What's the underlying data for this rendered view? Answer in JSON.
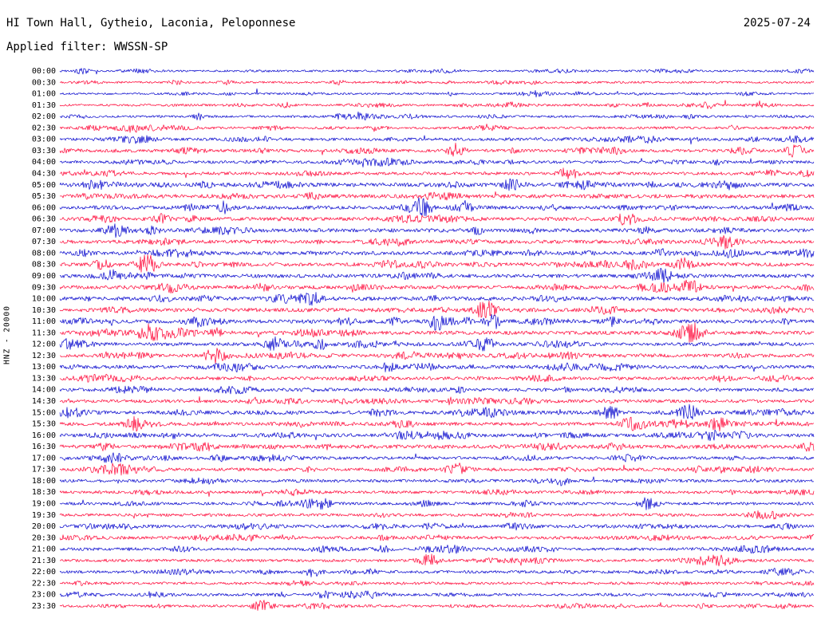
{
  "header": {
    "title": "HI Town Hall, Gytheio, Laconia, Peloponnese",
    "date": "2025-07-24",
    "filter": "Applied filter: WWSSN-SP"
  },
  "axis": {
    "left_label": "HNZ - 20000"
  },
  "chart_data": {
    "type": "helicorder",
    "channel": "HNZ",
    "scale": 20000,
    "row_interval_minutes": 30,
    "first_row_time": "00:00",
    "last_row_time": "23:30",
    "colors": {
      "blue": "#0000cc",
      "red": "#ff0033",
      "background": "#ffffff",
      "text": "#000000"
    },
    "rows": [
      {
        "t": "00:00",
        "c": "blue",
        "n": 1.2
      },
      {
        "t": "00:30",
        "c": "red",
        "n": 1.3
      },
      {
        "t": "01:00",
        "c": "blue",
        "n": 1.2
      },
      {
        "t": "01:30",
        "c": "red",
        "n": 1.4
      },
      {
        "t": "02:00",
        "c": "blue",
        "n": 1.4
      },
      {
        "t": "02:30",
        "c": "red",
        "n": 1.5
      },
      {
        "t": "03:00",
        "c": "blue",
        "n": 1.8
      },
      {
        "t": "03:30",
        "c": "red",
        "n": 1.9
      },
      {
        "t": "04:00",
        "c": "blue",
        "n": 1.7
      },
      {
        "t": "04:30",
        "c": "red",
        "n": 1.9
      },
      {
        "t": "05:00",
        "c": "blue",
        "n": 2.4
      },
      {
        "t": "05:30",
        "c": "red",
        "n": 2.4
      },
      {
        "t": "06:00",
        "c": "blue",
        "n": 2.2
      },
      {
        "t": "06:30",
        "c": "red",
        "n": 2.2
      },
      {
        "t": "07:00",
        "c": "blue",
        "n": 2.3
      },
      {
        "t": "07:30",
        "c": "red",
        "n": 2.2
      },
      {
        "t": "08:00",
        "c": "blue",
        "n": 2.2
      },
      {
        "t": "08:30",
        "c": "red",
        "n": 2.3
      },
      {
        "t": "09:00",
        "c": "blue",
        "n": 2.3
      },
      {
        "t": "09:30",
        "c": "red",
        "n": 2.2
      },
      {
        "t": "10:00",
        "c": "blue",
        "n": 2.4
      },
      {
        "t": "10:30",
        "c": "red",
        "n": 2.3
      },
      {
        "t": "11:00",
        "c": "blue",
        "n": 2.3
      },
      {
        "t": "11:30",
        "c": "red",
        "n": 2.3
      },
      {
        "t": "12:00",
        "c": "blue",
        "n": 2.2
      },
      {
        "t": "12:30",
        "c": "red",
        "n": 2.2
      },
      {
        "t": "13:00",
        "c": "blue",
        "n": 2.1
      },
      {
        "t": "13:30",
        "c": "red",
        "n": 2.0
      },
      {
        "t": "14:00",
        "c": "blue",
        "n": 2.0
      },
      {
        "t": "14:30",
        "c": "red",
        "n": 2.0
      },
      {
        "t": "15:00",
        "c": "blue",
        "n": 2.2
      },
      {
        "t": "15:30",
        "c": "red",
        "n": 2.2
      },
      {
        "t": "16:00",
        "c": "blue",
        "n": 2.2
      },
      {
        "t": "16:30",
        "c": "red",
        "n": 2.3
      },
      {
        "t": "17:00",
        "c": "blue",
        "n": 1.9
      },
      {
        "t": "17:30",
        "c": "red",
        "n": 1.9
      },
      {
        "t": "18:00",
        "c": "blue",
        "n": 1.8
      },
      {
        "t": "18:30",
        "c": "red",
        "n": 1.8
      },
      {
        "t": "19:00",
        "c": "blue",
        "n": 1.8
      },
      {
        "t": "19:30",
        "c": "red",
        "n": 1.7
      },
      {
        "t": "20:00",
        "c": "blue",
        "n": 1.9
      },
      {
        "t": "20:30",
        "c": "red",
        "n": 1.9
      },
      {
        "t": "21:00",
        "c": "blue",
        "n": 1.8
      },
      {
        "t": "21:30",
        "c": "red",
        "n": 1.8
      },
      {
        "t": "22:00",
        "c": "blue",
        "n": 1.8
      },
      {
        "t": "22:30",
        "c": "red",
        "n": 1.7
      },
      {
        "t": "23:00",
        "c": "blue",
        "n": 1.7
      },
      {
        "t": "23:30",
        "c": "red",
        "n": 1.6
      }
    ],
    "events": [
      {
        "t": "00:00",
        "x": 0.03,
        "a": 3.5,
        "w": 6
      },
      {
        "t": "00:30",
        "x": 0.155,
        "a": 2.5,
        "w": 5
      },
      {
        "t": "00:30",
        "x": 0.37,
        "a": 2.5,
        "w": 6
      },
      {
        "t": "01:00",
        "x": 0.52,
        "a": 2,
        "w": 5
      },
      {
        "t": "01:30",
        "x": 0.3,
        "a": 2.5,
        "w": 6
      },
      {
        "t": "01:30",
        "x": 0.86,
        "a": 3,
        "w": 7
      },
      {
        "t": "02:00",
        "x": 0.185,
        "a": 3.5,
        "w": 5
      },
      {
        "t": "02:30",
        "x": 0.1,
        "a": 2.5,
        "w": 6
      },
      {
        "t": "02:30",
        "x": 0.42,
        "a": 2.5,
        "w": 6
      },
      {
        "t": "03:00",
        "x": 0.27,
        "a": 3,
        "w": 6
      },
      {
        "t": "03:30",
        "x": 0.525,
        "a": 8,
        "w": 7
      },
      {
        "t": "03:30",
        "x": 0.975,
        "a": 7,
        "w": 8
      },
      {
        "t": "04:00",
        "x": 0.4,
        "a": 3,
        "w": 6
      },
      {
        "t": "04:30",
        "x": 0.675,
        "a": 8,
        "w": 8
      },
      {
        "t": "04:30",
        "x": 0.945,
        "a": 4,
        "w": 7
      },
      {
        "t": "05:00",
        "x": 0.6,
        "a": 3,
        "w": 8
      },
      {
        "t": "05:30",
        "x": 0.335,
        "a": 3,
        "w": 7
      },
      {
        "t": "06:00",
        "x": 0.215,
        "a": 7,
        "w": 7
      },
      {
        "t": "06:00",
        "x": 0.48,
        "a": 8,
        "w": 8
      },
      {
        "t": "06:00",
        "x": 0.535,
        "a": 7,
        "w": 7
      },
      {
        "t": "06:30",
        "x": 0.135,
        "a": 5,
        "w": 7
      },
      {
        "t": "06:30",
        "x": 0.755,
        "a": 6,
        "w": 8
      },
      {
        "t": "07:00",
        "x": 0.075,
        "a": 6,
        "w": 8
      },
      {
        "t": "07:30",
        "x": 0.885,
        "a": 4,
        "w": 7
      },
      {
        "t": "08:00",
        "x": 0.8,
        "a": 5,
        "w": 8
      },
      {
        "t": "08:30",
        "x": 0.055,
        "a": 6,
        "w": 7
      },
      {
        "t": "08:30",
        "x": 0.115,
        "a": 12,
        "w": 9
      },
      {
        "t": "08:30",
        "x": 0.825,
        "a": 7,
        "w": 8
      },
      {
        "t": "09:00",
        "x": 0.8,
        "a": 6,
        "w": 8
      },
      {
        "t": "09:30",
        "x": 0.145,
        "a": 4,
        "w": 6
      },
      {
        "t": "09:30",
        "x": 0.835,
        "a": 7,
        "w": 7
      },
      {
        "t": "10:00",
        "x": 0.335,
        "a": 5,
        "w": 7
      },
      {
        "t": "10:30",
        "x": 0.565,
        "a": 11,
        "w": 9
      },
      {
        "t": "11:00",
        "x": 0.5,
        "a": 6,
        "w": 7
      },
      {
        "t": "11:00",
        "x": 0.575,
        "a": 8,
        "w": 7
      },
      {
        "t": "11:00",
        "x": 0.73,
        "a": 5,
        "w": 7
      },
      {
        "t": "11:30",
        "x": 0.115,
        "a": 5,
        "w": 7
      },
      {
        "t": "11:30",
        "x": 0.21,
        "a": 6,
        "w": 7
      },
      {
        "t": "11:30",
        "x": 0.835,
        "a": 10,
        "w": 11
      },
      {
        "t": "12:00",
        "x": 0.285,
        "a": 8,
        "w": 8
      },
      {
        "t": "12:00",
        "x": 0.345,
        "a": 6,
        "w": 7
      },
      {
        "t": "12:00",
        "x": 0.565,
        "a": 6,
        "w": 7
      },
      {
        "t": "12:30",
        "x": 0.205,
        "a": 8,
        "w": 8
      },
      {
        "t": "13:00",
        "x": 0.435,
        "a": 6,
        "w": 7
      },
      {
        "t": "14:00",
        "x": 0.53,
        "a": 3,
        "w": 6
      },
      {
        "t": "14:30",
        "x": 0.52,
        "a": 3.5,
        "w": 6
      },
      {
        "t": "15:00",
        "x": 0.73,
        "a": 8,
        "w": 8
      },
      {
        "t": "15:00",
        "x": 0.835,
        "a": 7,
        "w": 8
      },
      {
        "t": "15:30",
        "x": 0.1,
        "a": 8,
        "w": 8
      },
      {
        "t": "15:30",
        "x": 0.875,
        "a": 8,
        "w": 9
      },
      {
        "t": "16:00",
        "x": 0.86,
        "a": 7,
        "w": 8
      },
      {
        "t": "16:30",
        "x": 0.06,
        "a": 4,
        "w": 7
      },
      {
        "t": "17:00",
        "x": 0.21,
        "a": 4,
        "w": 6
      },
      {
        "t": "17:30",
        "x": 0.525,
        "a": 7,
        "w": 8
      },
      {
        "t": "18:00",
        "x": 0.665,
        "a": 5,
        "w": 7
      },
      {
        "t": "19:00",
        "x": 0.33,
        "a": 4,
        "w": 6
      },
      {
        "t": "19:00",
        "x": 0.78,
        "a": 7,
        "w": 8
      },
      {
        "t": "20:00",
        "x": 0.6,
        "a": 3,
        "w": 6
      },
      {
        "t": "21:00",
        "x": 0.43,
        "a": 4,
        "w": 6
      },
      {
        "t": "21:30",
        "x": 0.49,
        "a": 7,
        "w": 8
      },
      {
        "t": "22:00",
        "x": 0.335,
        "a": 6,
        "w": 7
      },
      {
        "t": "23:00",
        "x": 0.35,
        "a": 4,
        "w": 6
      },
      {
        "t": "23:30",
        "x": 0.27,
        "a": 5,
        "w": 7
      }
    ]
  }
}
